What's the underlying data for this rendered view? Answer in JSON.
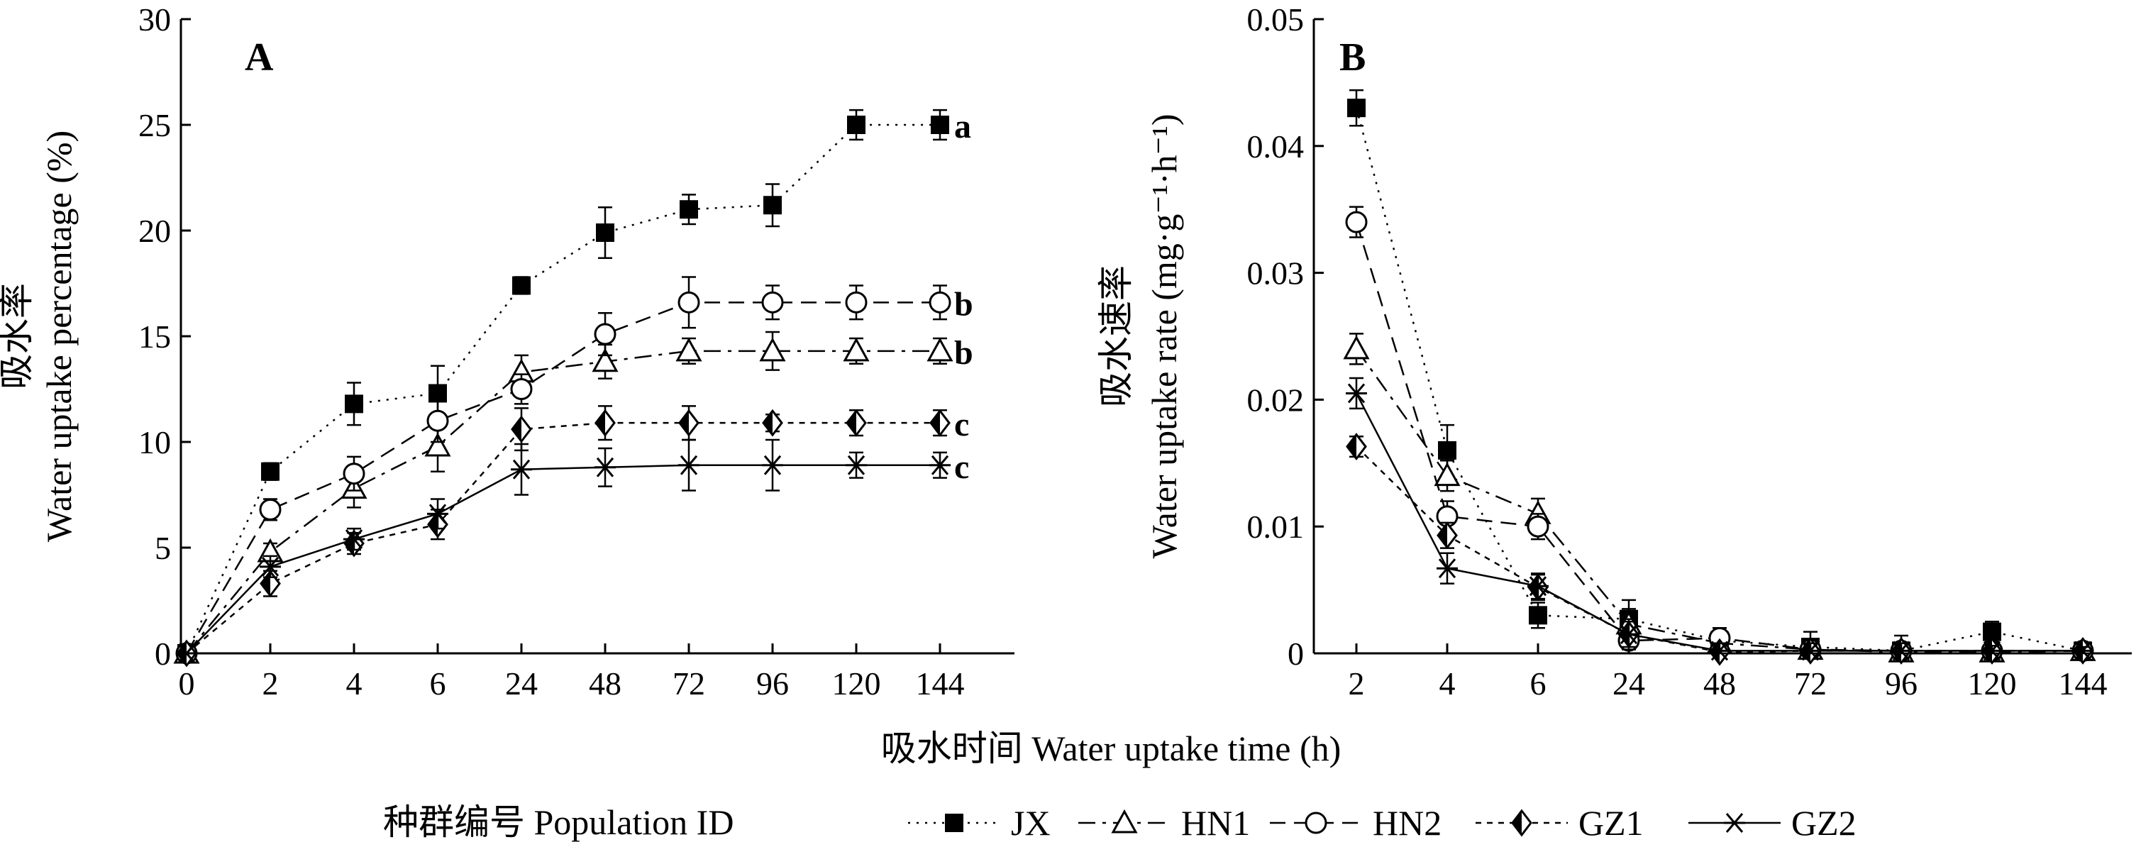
{
  "chart_data": [
    {
      "type": "line",
      "panel_label": "A",
      "ylabel_cn": "吸水率",
      "ylabel": "Water uptake percentage (%)",
      "x_ticks": [
        "0",
        "2",
        "4",
        "6",
        "24",
        "48",
        "72",
        "96",
        "120",
        "144"
      ],
      "x": [
        0,
        2,
        4,
        6,
        24,
        48,
        72,
        96,
        120,
        144
      ],
      "y_ticks": [
        "0",
        "5",
        "10",
        "15",
        "20",
        "25",
        "30"
      ],
      "ylim": [
        0,
        30
      ],
      "grid": false,
      "series": [
        {
          "name": "JX",
          "values": [
            0,
            8.6,
            11.8,
            12.3,
            17.4,
            19.9,
            21.0,
            21.2,
            25.0,
            25.0
          ],
          "errors": [
            0,
            0.4,
            1.0,
            1.3,
            0.4,
            1.2,
            0.7,
            1.0,
            0.7,
            0.7
          ],
          "end_label": "a"
        },
        {
          "name": "HN1",
          "values": [
            0,
            4.8,
            7.8,
            9.8,
            13.3,
            13.8,
            14.3,
            14.3,
            14.3,
            14.3
          ],
          "errors": [
            0,
            0.4,
            0.9,
            1.2,
            0.8,
            0.8,
            0.6,
            0.9,
            0.6,
            0.6
          ],
          "end_label": "b"
        },
        {
          "name": "HN2",
          "values": [
            0,
            6.8,
            8.5,
            11.0,
            12.5,
            15.1,
            16.6,
            16.6,
            16.6,
            16.6
          ],
          "errors": [
            0,
            0.5,
            0.8,
            1.0,
            0.7,
            1.0,
            1.2,
            0.8,
            0.8,
            0.8
          ],
          "end_label": "b"
        },
        {
          "name": "GZ1",
          "values": [
            0,
            3.3,
            5.2,
            6.1,
            10.6,
            10.9,
            10.9,
            10.9,
            10.9,
            10.9
          ],
          "errors": [
            0,
            0.6,
            0.5,
            0.7,
            1.0,
            0.8,
            0.8,
            0.4,
            0.6,
            0.6
          ],
          "end_label": "c"
        },
        {
          "name": "GZ2",
          "values": [
            0,
            4.1,
            5.4,
            6.6,
            8.7,
            8.8,
            8.9,
            8.9,
            8.9,
            8.9
          ],
          "errors": [
            0,
            0.5,
            0.5,
            0.7,
            1.2,
            0.9,
            1.2,
            1.2,
            0.6,
            0.6
          ],
          "end_label": "c"
        }
      ]
    },
    {
      "type": "line",
      "panel_label": "B",
      "ylabel_cn": "吸水速率",
      "ylabel": "Water uptake rate (mg·g⁻¹·h⁻¹)",
      "x_ticks": [
        "2",
        "4",
        "6",
        "24",
        "48",
        "72",
        "96",
        "120",
        "144"
      ],
      "x": [
        2,
        4,
        6,
        24,
        48,
        72,
        96,
        120,
        144
      ],
      "y_ticks": [
        "0",
        "0.01",
        "0.02",
        "0.03",
        "0.04",
        "0.05"
      ],
      "ylim": [
        0,
        0.05
      ],
      "grid": false,
      "series": [
        {
          "name": "JX",
          "values": [
            0.043,
            0.016,
            0.003,
            0.0027,
            0.001,
            0.0005,
            0.0002,
            0.0017,
            0.0002
          ],
          "errors": [
            0.0014,
            0.002,
            0.001,
            0.0015,
            0.0008,
            0.0012,
            0.0012,
            0.0008,
            0.0003
          ]
        },
        {
          "name": "HN1",
          "values": [
            0.024,
            0.014,
            0.011,
            0.0023,
            0.0008,
            0.0003,
            0.0001,
            0.0001,
            0.0002
          ],
          "errors": [
            0.0012,
            0.0012,
            0.0012,
            0.0012,
            0.0008,
            0.0006,
            0.0006,
            0.0005,
            0.0003
          ]
        },
        {
          "name": "HN2",
          "values": [
            0.034,
            0.0108,
            0.01,
            0.001,
            0.0012,
            0.0003,
            0.0002,
            0.0002,
            0.0002
          ],
          "errors": [
            0.0012,
            0.0012,
            0.001,
            0.001,
            0.0008,
            0.0006,
            0.0005,
            0.0004,
            0.0003
          ]
        },
        {
          "name": "GZ1",
          "values": [
            0.0163,
            0.0093,
            0.0052,
            0.0015,
            0.0001,
            0.0002,
            0.0002,
            0.0002,
            0.0002
          ],
          "errors": [
            0.0008,
            0.001,
            0.001,
            0.001,
            0.0006,
            0.0005,
            0.0005,
            0.0004,
            0.0003
          ]
        },
        {
          "name": "GZ2",
          "values": [
            0.0205,
            0.0067,
            0.0053,
            0.0015,
            0.0002,
            0.0002,
            0.0002,
            0.0002,
            0.0002
          ],
          "errors": [
            0.0012,
            0.0012,
            0.001,
            0.0012,
            0.0006,
            0.0006,
            0.0006,
            0.0004,
            0.0003
          ]
        }
      ]
    }
  ],
  "xlabel": "吸水时间 Water uptake time (h)",
  "legend": {
    "title": "种群编号 Population ID",
    "placement": "bottom",
    "items": [
      "JX",
      "HN1",
      "HN2",
      "GZ1",
      "GZ2"
    ]
  }
}
